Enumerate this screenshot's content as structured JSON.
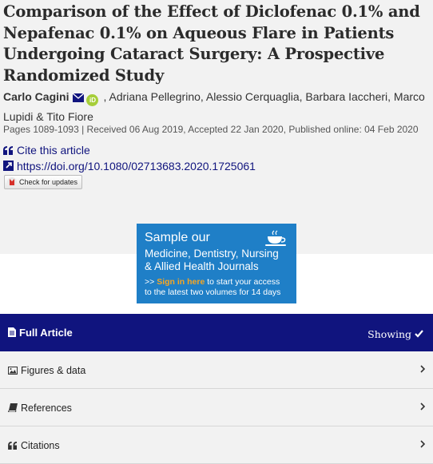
{
  "article": {
    "title": "Comparison of the Effect of Diclofenac 0.1% and Nepafenac 0.1% on Aqueous Flare in Patients Undergoing Cataract Surgery: A Prospective Randomized Study",
    "authors": {
      "first": "Carlo Cagini",
      "a2": "Adriana Pellegrino",
      "a3": "Alessio Cerquaglia",
      "a4": "Barbara Iaccheri",
      "a5": "Marco Lupidi",
      "amp": "&",
      "a6": "Tito Fiore",
      "sep": ","
    },
    "pages_line": "Pages 1089-1093 | Received 06 Aug 2019, Accepted 22 Jan 2020, Published online: 04 Feb 2020",
    "cite_label": "Cite this article",
    "doi": "https://doi.org/10.1080/02713683.2020.1725061",
    "check_updates": "Check for updates"
  },
  "ad": {
    "line1": "Sample our",
    "line2": "Medicine, Dentistry, Nursing",
    "line3": "& Allied Health Journals",
    "prefix": ">> ",
    "link": "Sign in here",
    "rest1": " to start your access",
    "rest2": "to the latest two volumes for 14 days"
  },
  "sections": {
    "full_article": "Full Article",
    "showing": "Showing",
    "figures": "Figures & data",
    "references": "References",
    "citations": "Citations"
  },
  "colors": {
    "navy": "#10147e",
    "ad_blue": "#1f7fc7",
    "orcid": "#a6ce39"
  }
}
